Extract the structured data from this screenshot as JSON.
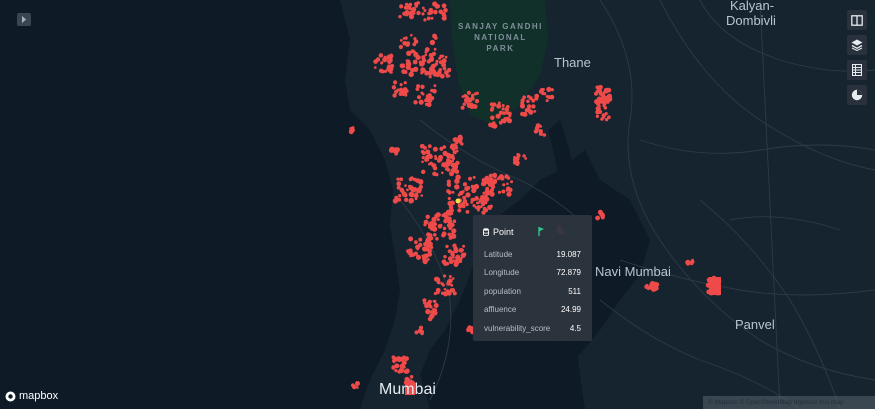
{
  "map": {
    "places": [
      {
        "key": "park",
        "lines": [
          "SANJAY GANDHI",
          "NATIONAL",
          "PARK"
        ]
      },
      {
        "key": "kalyan",
        "lines": [
          "Kalyan-",
          "Dombivli"
        ]
      },
      {
        "key": "thane",
        "text": "Thane"
      },
      {
        "key": "navi_mumbai",
        "text": "Navi Mumbai"
      },
      {
        "key": "panvel",
        "text": "Panvel"
      },
      {
        "key": "mumbai",
        "text": "Mumbai"
      }
    ],
    "point_color": "#ef4a4a",
    "water_color": "#0e1a26",
    "land_color": "#16242f",
    "park_color": "#11302a"
  },
  "toolbar": {
    "toggle_icon": "chevron-right-icon",
    "tools": [
      {
        "icon": "split-map-icon"
      },
      {
        "icon": "layers-icon"
      },
      {
        "icon": "legend-icon"
      },
      {
        "icon": "pie-chart-icon"
      }
    ]
  },
  "tooltip": {
    "title": "Point",
    "icon": "database-icon",
    "pin_icon": "pin-icon",
    "rows": [
      {
        "label": "Latitude",
        "value": "19.087"
      },
      {
        "label": "Longitude",
        "value": "72.879"
      },
      {
        "label": "population",
        "value": "511"
      },
      {
        "label": "affluence",
        "value": "24.99"
      },
      {
        "label": "vulnerability_score",
        "value": "4.5"
      }
    ]
  },
  "footer": {
    "logo_text": "mapbox",
    "attribution": "© Mapbox © OpenStreetMap Improve this map"
  }
}
